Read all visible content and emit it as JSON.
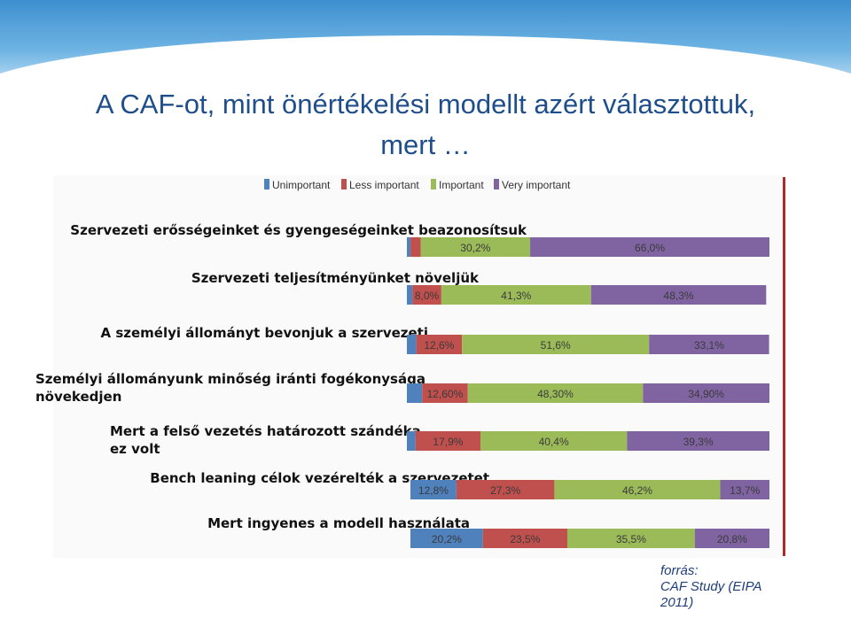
{
  "title_line1": "A CAF-ot, mint önértékelési modellt azért választottuk,",
  "title_line2": "mert …",
  "source": [
    "forrás:",
    "CAF Study (EIPA",
    "2011)"
  ],
  "colors": {
    "Unimportant": "#4f81bd",
    "Less important": "#c0504d",
    "Important": "#9bbb59",
    "Very important": "#8064a2"
  },
  "chart_data": {
    "type": "bar",
    "orientation": "horizontal",
    "stacked": true,
    "legend": [
      "Unimportant",
      "Less important",
      "Important",
      "Very important"
    ],
    "legend_position": "top",
    "categories": [
      [
        "Szervezeti erősségeinket és gyengeségeinket beazonosítsuk"
      ],
      [
        "Szervezeti teljesítményünket növeljük"
      ],
      [
        "A személyi állományt bevonjuk a szervezeti"
      ],
      [
        "Személyi állományunk minőség iránti fogékonysága",
        "növekedjen"
      ],
      [
        "Mert a felső vezetés határozott szándéka",
        "ez volt"
      ],
      [
        "Bench leaning célok vezérelték a szervezetet"
      ],
      [
        "Mert ingyenes a modell használata"
      ]
    ],
    "series": [
      {
        "name": "Unimportant",
        "values": [
          1.0,
          1.5,
          2.6,
          4.2,
          2.4,
          12.8,
          20.2
        ]
      },
      {
        "name": "Less important",
        "values": [
          2.8,
          8.0,
          12.6,
          12.6,
          17.9,
          27.3,
          23.5
        ]
      },
      {
        "name": "Important",
        "values": [
          30.2,
          41.3,
          51.6,
          48.3,
          40.4,
          46.2,
          35.5
        ]
      },
      {
        "name": "Very important",
        "values": [
          66.0,
          48.3,
          33.1,
          34.9,
          39.3,
          13.7,
          20.8
        ]
      }
    ],
    "data_labels": [
      [
        "",
        "",
        "30,2%",
        "66,0%"
      ],
      [
        "",
        "8,0%",
        "41,3%",
        "48,3%"
      ],
      [
        "",
        "12,6%",
        "51,6%",
        "33,1%"
      ],
      [
        "",
        "12,60%",
        "48,30%",
        "34,90%"
      ],
      [
        "",
        "17,9%",
        "40,4%",
        "39,3%"
      ],
      [
        "12,8%",
        "27,3%",
        "46,2%",
        "13,7%"
      ],
      [
        "20,2%",
        "23,5%",
        "35,5%",
        "20,8%"
      ]
    ],
    "xlim": [
      0,
      100
    ]
  }
}
